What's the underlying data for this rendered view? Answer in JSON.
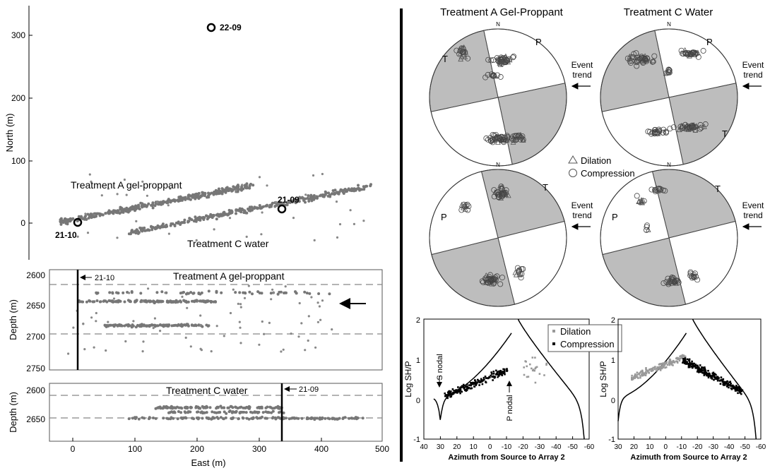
{
  "map_panel": {
    "ylabel": "North (m)",
    "yticks": [
      "0",
      "100",
      "200",
      "300"
    ],
    "label_a": "Treatment A gel-proppant",
    "label_c": "Treatment C water",
    "wells": [
      {
        "name": "22-09",
        "east": 222,
        "north": 312
      },
      {
        "name": "21-09",
        "east": 335,
        "north": 23
      },
      {
        "name": "21-10",
        "east": 10,
        "north": 2
      }
    ]
  },
  "depth_a_panel": {
    "ylabel": "Depth (m)",
    "yticks": [
      "2600",
      "2650",
      "2700",
      "2750"
    ],
    "title": "Treatment A gel-proppant",
    "well_label": "21-10"
  },
  "depth_c_panel": {
    "ylabel": "Depth (m)",
    "yticks": [
      "2600",
      "2650"
    ],
    "title": "Treatment C water",
    "well_label": "21-09"
  },
  "x_axis": {
    "label": "East (m)",
    "ticks": [
      "0",
      "100",
      "200",
      "300",
      "400",
      "500"
    ]
  },
  "stereonets": {
    "title_a": "Treatment A Gel-Proppant",
    "title_c": "Treatment C Water",
    "north": "N",
    "p": "P",
    "t": "T",
    "event_trend": [
      "Event",
      "trend"
    ],
    "legend": {
      "dilation": "Dilation",
      "compression": "Compression"
    }
  },
  "ratio_plots": {
    "ylabel": "Log SH/P",
    "xlabel": "Azimuth from Source to Array 2",
    "yticks": [
      "-1",
      "0",
      "1",
      "2"
    ],
    "xticks": [
      "40",
      "30",
      "20",
      "10",
      "0",
      "-10",
      "-20",
      "-30",
      "-40",
      "-50",
      "-60"
    ],
    "xticks_right": [
      "30",
      "20",
      "10",
      "0",
      "-10",
      "-20",
      "-30",
      "-40",
      "-50",
      "-60"
    ],
    "s_nodal": "S nodal",
    "p_nodal": "P nodal",
    "legend": {
      "dilation": "Dilation",
      "compression": "Compression"
    }
  },
  "chart_data": [
    {
      "type": "scatter",
      "title": "",
      "xlabel": "East (m)",
      "ylabel": "North (m)",
      "xlim": [
        -30,
        500
      ],
      "ylim": [
        -50,
        350
      ],
      "series": [
        {
          "name": "Treatment A gel-proppant",
          "trend": {
            "x": [
              -20,
              290
            ],
            "y": [
              2,
              60
            ]
          }
        },
        {
          "name": "Treatment C water",
          "trend": {
            "x": [
              90,
              480
            ],
            "y": [
              -15,
              58
            ]
          }
        }
      ]
    },
    {
      "type": "scatter",
      "title": "Treatment A gel-proppant",
      "xlabel": "East (m)",
      "ylabel": "Depth (m)",
      "xlim": [
        -30,
        500
      ],
      "ylim": [
        2750,
        2590
      ],
      "reference_depths": [
        2615,
        2693
      ]
    },
    {
      "type": "scatter",
      "title": "Treatment C water",
      "xlabel": "East (m)",
      "ylabel": "Depth (m)",
      "xlim": [
        -30,
        500
      ],
      "ylim": [
        2660,
        2590
      ],
      "reference_depths": [
        2608,
        2648
      ]
    },
    {
      "type": "scatter",
      "title": "",
      "xlabel": "Azimuth from Source to Array 2",
      "ylabel": "Log SH/P",
      "xlim": [
        40,
        -60
      ],
      "ylim": [
        -1,
        2
      ],
      "series": [
        {
          "name": "Dilation"
        },
        {
          "name": "Compression"
        }
      ]
    },
    {
      "type": "scatter",
      "title": "",
      "xlabel": "Azimuth from Source to Array 2",
      "ylabel": "Log SH/P",
      "xlim": [
        30,
        -60
      ],
      "ylim": [
        -1,
        2
      ],
      "series": [
        {
          "name": "Dilation"
        },
        {
          "name": "Compression"
        }
      ]
    }
  ]
}
